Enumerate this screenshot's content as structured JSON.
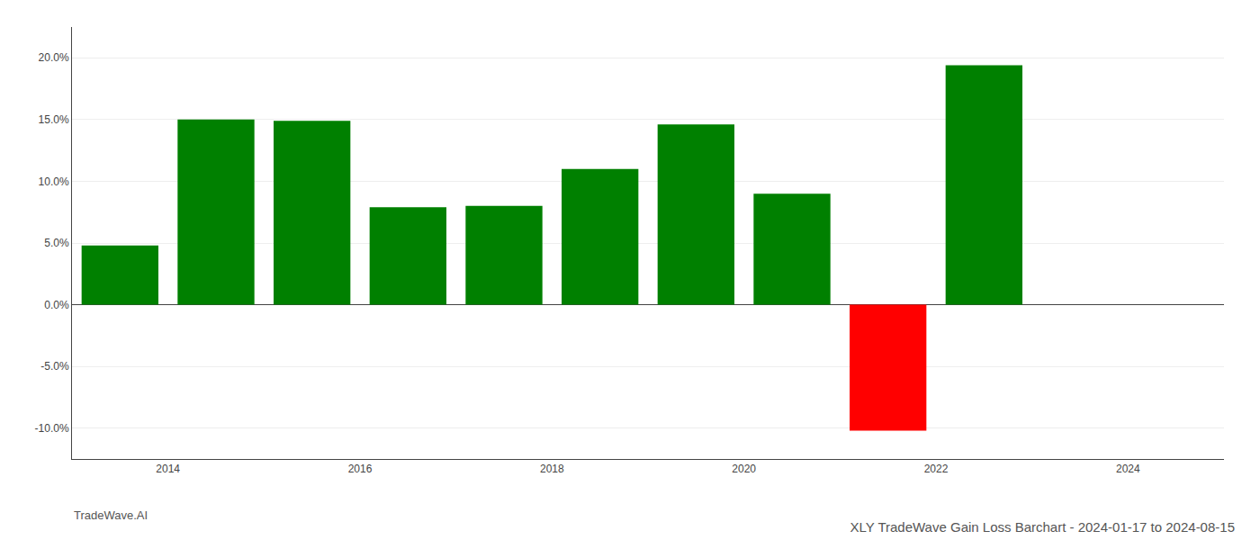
{
  "chart_data": {
    "type": "bar",
    "title": "XLY TradeWave Gain Loss Barchart - 2024-01-17 to 2024-08-15",
    "annotations": [
      "TradeWave.AI"
    ],
    "x": [
      2013.5,
      2014.5,
      2015.5,
      2016.5,
      2017.5,
      2018.5,
      2019.5,
      2020.5,
      2021.5,
      2022.5
    ],
    "values": [
      4.8,
      15.0,
      14.9,
      7.9,
      8.0,
      11.0,
      14.6,
      9.0,
      -10.2,
      19.4
    ],
    "colors": [
      "#008000",
      "#008000",
      "#008000",
      "#008000",
      "#008000",
      "#008000",
      "#008000",
      "#008000",
      "#ff0000",
      "#008000"
    ],
    "xlim": [
      2013.0,
      2025.0
    ],
    "xticks": [
      2014,
      2016,
      2018,
      2020,
      2022,
      2024
    ],
    "ylim": [
      -12.5,
      22.5
    ],
    "yticks": [
      {
        "value": -10.0,
        "label": "-10.0%"
      },
      {
        "value": -5.0,
        "label": "-5.0%"
      },
      {
        "value": 0.0,
        "label": "0.0%"
      },
      {
        "value": 5.0,
        "label": "5.0%"
      },
      {
        "value": 10.0,
        "label": "10.0%"
      },
      {
        "value": 15.0,
        "label": "15.0%"
      },
      {
        "value": 20.0,
        "label": "20.0%"
      }
    ],
    "grid": true
  }
}
